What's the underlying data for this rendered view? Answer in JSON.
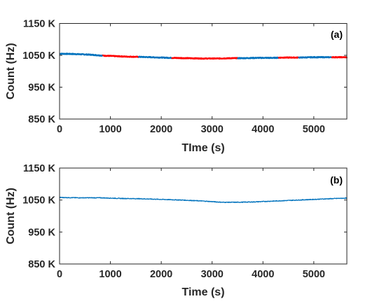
{
  "chart_data": [
    {
      "type": "line",
      "panel_label": "(a)",
      "xlabel": "TIme (s)",
      "ylabel": "Count (Hz)",
      "xlim": [
        0,
        5650
      ],
      "ylim": [
        850,
        1150
      ],
      "x_ticks": [
        0,
        1000,
        2000,
        3000,
        4000,
        5000
      ],
      "x_tick_labels": [
        "0",
        "1000",
        "2000",
        "3000",
        "4000",
        "5000"
      ],
      "y_ticks": [
        850,
        950,
        1050,
        1150
      ],
      "y_tick_labels": [
        "850 K",
        "950 K",
        "1050 K",
        "1150 K"
      ],
      "grid": false,
      "line_colors": {
        "blue": "#0072bd",
        "red": "#ff0000"
      },
      "trace": {
        "x": [
          0,
          300,
          600,
          850,
          1000,
          1300,
          1600,
          2000,
          2200,
          2500,
          2800,
          3100,
          3400,
          3600,
          3900,
          4200,
          4400,
          4700,
          5000,
          5300,
          5650
        ],
        "y": [
          1055,
          1054,
          1052,
          1049,
          1048,
          1046,
          1045,
          1043,
          1042,
          1041,
          1040,
          1040,
          1041,
          1041,
          1042,
          1042,
          1043,
          1043,
          1044,
          1044,
          1044
        ]
      },
      "segments": [
        {
          "color": "blue",
          "x_range": [
            0,
            850
          ]
        },
        {
          "color": "red",
          "x_range": [
            850,
            1550
          ]
        },
        {
          "color": "blue",
          "x_range": [
            1550,
            2200
          ]
        },
        {
          "color": "red",
          "x_range": [
            2200,
            3500
          ]
        },
        {
          "color": "blue",
          "x_range": [
            3500,
            4300
          ]
        },
        {
          "color": "red",
          "x_range": [
            4300,
            4700
          ]
        },
        {
          "color": "blue",
          "x_range": [
            4700,
            5350
          ]
        },
        {
          "color": "red",
          "x_range": [
            5350,
            5650
          ]
        }
      ]
    },
    {
      "type": "line",
      "panel_label": "(b)",
      "xlabel": "Time (s)",
      "ylabel": "Count (Hz)",
      "xlim": [
        0,
        5650
      ],
      "ylim": [
        850,
        1150
      ],
      "x_ticks": [
        0,
        1000,
        2000,
        3000,
        4000,
        5000
      ],
      "x_tick_labels": [
        "0",
        "1000",
        "2000",
        "3000",
        "4000",
        "5000"
      ],
      "y_ticks": [
        850,
        950,
        1050,
        1150
      ],
      "y_tick_labels": [
        "850 K",
        "950 K",
        "1050 K",
        "1150 K"
      ],
      "grid": false,
      "line_colors": {
        "blue": "#0072bd"
      },
      "trace": {
        "x": [
          0,
          400,
          800,
          1200,
          1600,
          2000,
          2400,
          2800,
          3000,
          3200,
          3500,
          3800,
          4100,
          4400,
          4700,
          5000,
          5300,
          5650
        ],
        "y": [
          1058,
          1057,
          1057,
          1055,
          1054,
          1052,
          1050,
          1047,
          1045,
          1043,
          1043,
          1044,
          1046,
          1048,
          1050,
          1052,
          1054,
          1056
        ]
      },
      "segments": [
        {
          "color": "blue",
          "x_range": [
            0,
            5650
          ]
        }
      ]
    }
  ]
}
